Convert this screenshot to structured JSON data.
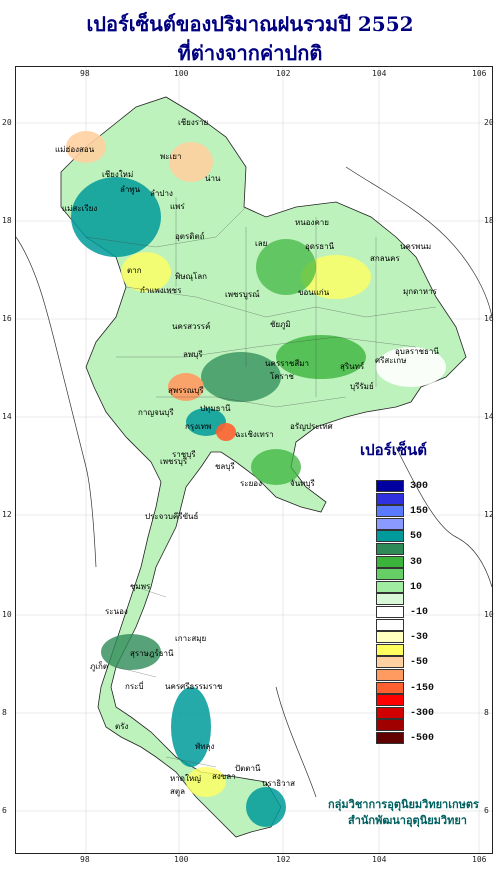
{
  "title": {
    "line1": "เปอร์เซ็นต์ของปริมาณฝนรวมปี 2552",
    "line2": "ที่ต่างจากค่าปกติ"
  },
  "axes": {
    "top": [
      "98",
      "100",
      "102",
      "104",
      "106"
    ],
    "bottom": [
      "98",
      "100",
      "102",
      "104",
      "106"
    ],
    "left": [
      "20",
      "18",
      "16",
      "14",
      "12",
      "10",
      "8",
      "6"
    ],
    "right": [
      "20",
      "18",
      "16",
      "14",
      "12",
      "10",
      "8",
      "6"
    ]
  },
  "legend": {
    "title": "เปอร์เซ็นต์",
    "labels": [
      "300",
      "150",
      "50",
      "30",
      "10",
      "-10",
      "-30",
      "-50",
      "-150",
      "-300",
      "-500"
    ],
    "colors": [
      "#0000a0",
      "#3030e0",
      "#5a7aff",
      "#8a9aff",
      "#009a9a",
      "#2e8b57",
      "#3cb43c",
      "#66d066",
      "#a0eca0",
      "#d8f8d8",
      "#ffffff",
      "#ffffff",
      "#ffffc0",
      "#ffff60",
      "#ffd0a0",
      "#ff9a60",
      "#ff6030",
      "#ff0000",
      "#d00000",
      "#a00000",
      "#600000"
    ]
  },
  "places": [
    "เชียงราย",
    "แม่ฮ่องสอน",
    "พะเยา",
    "น่าน",
    "เชียงใหม่",
    "ลำพูน",
    "ลำปาง",
    "แพร่",
    "แม่สะเรียง",
    "อุตรดิตถ์",
    "หนองคาย",
    "เลย",
    "อุดรธานี",
    "นครพนม",
    "สกลนคร",
    "ตาก",
    "พิษณุโลก",
    "มุกดาหาร",
    "กำแพงเพชร",
    "เพชรบูรณ์",
    "ขอนแก่น",
    "นครสวรรค์",
    "ชัยภูมิ",
    "อุบลราชธานี",
    "ลพบุรี",
    "นครราชสีมา",
    "สุรินทร์",
    "ศรีสะเกษ",
    "สุพรรณบุรี",
    "บุรีรัมย์",
    "โคราช",
    "กาญจนบุรี",
    "ปทุมธานี",
    "กรุงเทพ",
    "ราชบุรี",
    "ฉะเชิงเทรา",
    "อรัญประเทศ",
    "ชลบุรี",
    "ระยอง",
    "จันทบุรี",
    "เพชรบุรี",
    "ประจวบคีรีขันธ์",
    "ชุมพร",
    "ระนอง",
    "เกาะสมุย",
    "สุราษฎร์ธานี",
    "ภูเก็ต",
    "กระบี่",
    "นครศรีธรรมราช",
    "ตรัง",
    "พัทลุง",
    "สงขลา",
    "หาดใหญ่",
    "ปัตตานี",
    "นราธิวาส",
    "สตูล"
  ],
  "credit": {
    "line1": "กลุ่มวิชาการอุตุนิยมวิทยาเกษตร",
    "line2": "สำนักพัฒนาอุตุนิยมวิทยา"
  }
}
